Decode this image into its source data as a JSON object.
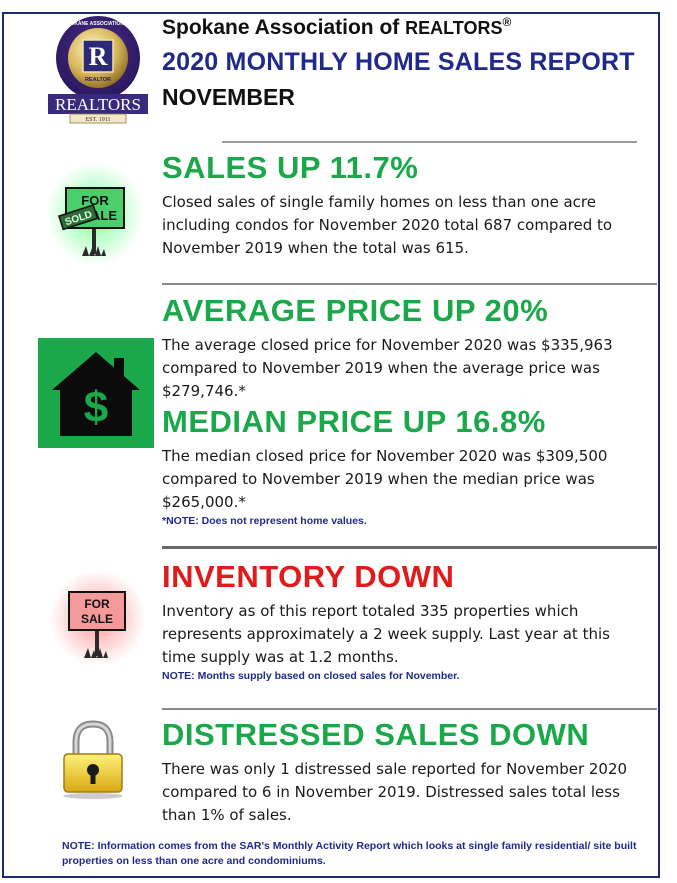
{
  "header": {
    "org_prefix": "Spokane Association of",
    "org_brand": "REALTORS",
    "reg_mark": "®",
    "title": "2020 MONTHLY HOME SALES REPORT",
    "month": "NOVEMBER"
  },
  "logo": {
    "ring_text": "SPOKANE ASSOCIATION OF",
    "center_letter": "R",
    "center_label": "REALTOR",
    "banner_text": "REALTORS",
    "est_text": "EST. 1911"
  },
  "sections": {
    "sales": {
      "heading": "SALES UP 11.7%",
      "body": "Closed sales of single family homes on less than one acre including condos for November 2020 total 687 compared to November 2019 when the total was 615.",
      "icon": "for-sale-sold-sign-icon",
      "sign_text_top": "FOR",
      "sign_text_mid": "ALE",
      "sign_text_sold": "SOLD"
    },
    "average": {
      "heading": "AVERAGE PRICE UP 20%",
      "body": "The average closed price for November 2020 was $335,963 compared to November 2019 when the average price was $279,746.*",
      "icon": "house-dollar-icon",
      "icon_glyph": "$"
    },
    "median": {
      "heading": "MEDIAN PRICE UP 16.8%",
      "body": "The median closed price for November 2020 was $309,500 compared to November 2019 when the median price was $265,000.*",
      "note": "*NOTE:  Does not represent home values."
    },
    "inventory": {
      "heading": "INVENTORY DOWN",
      "body": "Inventory as of this report totaled 335 properties which represents approximately a 2 week supply.  Last year at this time supply was at 1.2 months.",
      "note": "NOTE:  Months supply based on closed sales for November.",
      "icon": "for-sale-sign-icon",
      "sign_text_top": "FOR",
      "sign_text_bottom": "SALE"
    },
    "distressed": {
      "heading": "DISTRESSED SALES DOWN",
      "body": "There was only 1 distressed sale reported for November 2020 compared to 6 in November 2019. Distressed sales total less than 1% of sales.",
      "icon": "padlock-icon"
    }
  },
  "footer": {
    "note": "NOTE:  Information comes from the SAR's Monthly Activity Report which looks at single family residential/ site built properties on less than one acre and condominiums."
  },
  "colors": {
    "navy": "#1f2a8a",
    "green": "#1aa84a",
    "red": "#e01b1b",
    "rule": "#8a8a8a"
  }
}
